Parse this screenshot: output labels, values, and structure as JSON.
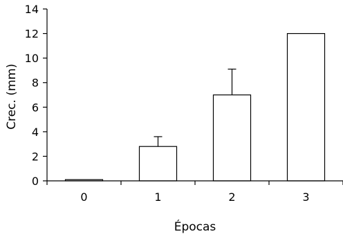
{
  "chart_data": {
    "type": "bar",
    "title": "",
    "xlabel": "Épocas",
    "ylabel": "Crec. (mm)",
    "categories": [
      "0",
      "1",
      "2",
      "3"
    ],
    "values": [
      0.1,
      2.8,
      7.0,
      12.0
    ],
    "error_upper": [
      0,
      0.8,
      2.1,
      0
    ],
    "ylim": [
      0,
      14
    ],
    "yticks": [
      0,
      2,
      4,
      6,
      8,
      10,
      12,
      14
    ],
    "grid": false,
    "legend": "none",
    "colors": {
      "bar_fill": "#ffffff",
      "bar_stroke": "#000000",
      "axis": "#000000"
    }
  }
}
